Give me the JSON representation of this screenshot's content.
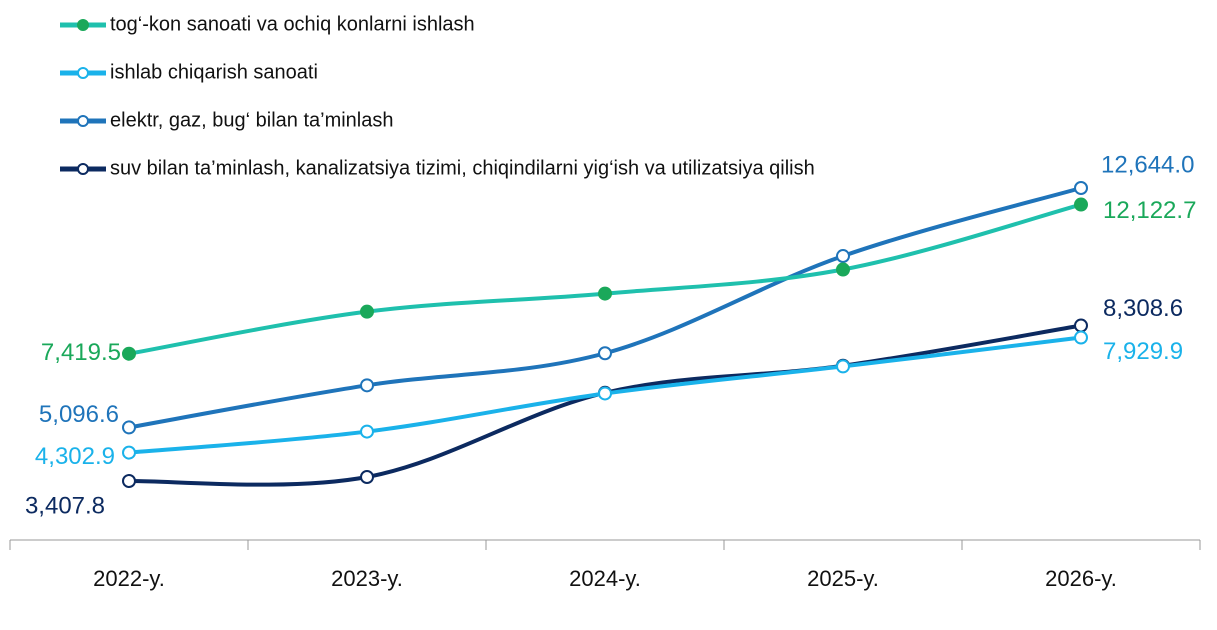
{
  "chart_data": {
    "type": "line",
    "categories": [
      "2022-y.",
      "2023-y.",
      "2024-y.",
      "2025-y.",
      "2026-y."
    ],
    "series": [
      {
        "name": "tog‘-kon sanoati va ochiq konlarni ishlash",
        "color": "#1fc0ad",
        "marker_color": "#1aa85a",
        "label_color": "#1aa85a",
        "values": [
          7419.5,
          8746,
          9315,
          10074,
          12122.7
        ],
        "value_labels": [
          "7,419.5",
          null,
          null,
          null,
          "12,122.7"
        ]
      },
      {
        "name": "ishlab chiqarish sanoati",
        "color": "#1ab2ea",
        "marker_color": "#ffffff",
        "label_color": "#1ab2ea",
        "values": [
          4302.9,
          4966,
          6167,
          7020,
          7929.9
        ],
        "value_labels": [
          "4,302.9",
          null,
          null,
          null,
          "7,929.9"
        ]
      },
      {
        "name": "elektr, gaz, bug‘ bilan ta’minlash",
        "color": "#1f74ba",
        "marker_color": "#ffffff",
        "label_color": "#1f74ba",
        "values": [
          5096.6,
          6424,
          7435,
          10500,
          12644.0
        ],
        "value_labels": [
          "5,096.6",
          null,
          null,
          null,
          "12,644.0"
        ]
      },
      {
        "name": "suv bilan ta’minlash, kanalizatsiya tizimi, chiqindilarni yig‘ish va utilizatsiya qilish",
        "color": "#0c2a60",
        "marker_color": "#ffffff",
        "label_color": "#0c2a60",
        "values": [
          3407.8,
          3534,
          6188,
          7041,
          8308.6
        ],
        "value_labels": [
          "3,407.8",
          null,
          null,
          null,
          "8,308.6"
        ]
      }
    ]
  }
}
